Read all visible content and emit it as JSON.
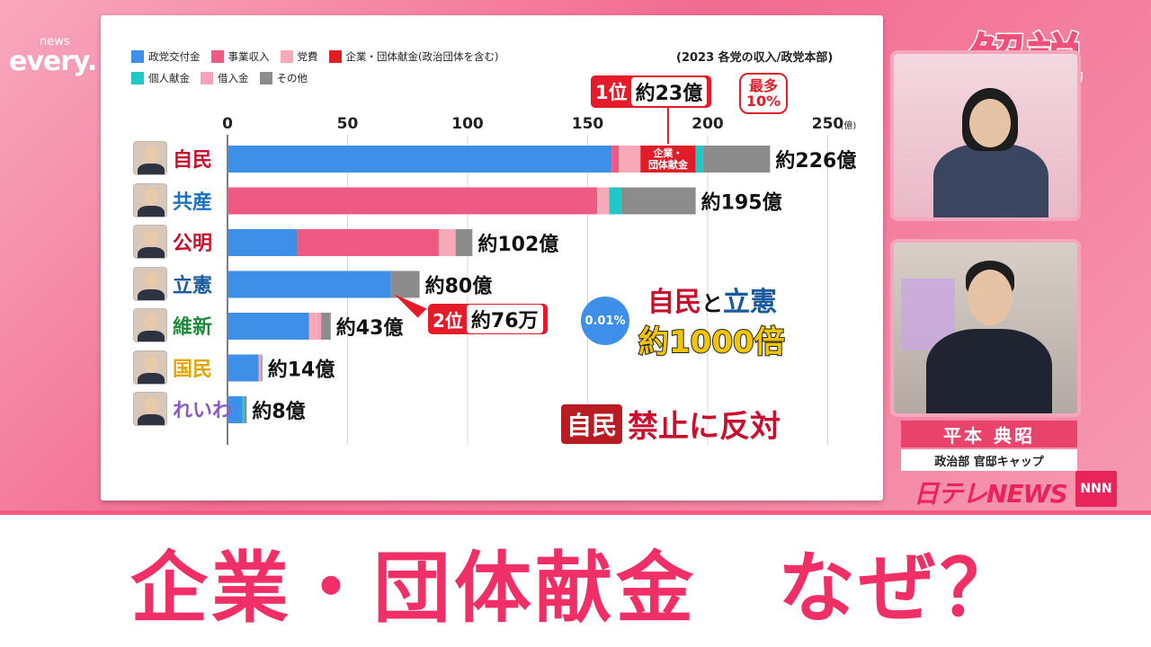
{
  "logo": {
    "small": "news",
    "big": "every."
  },
  "corner_label": "解説",
  "source_note": "(2023 各党の収入/政党本部)",
  "legend": [
    {
      "label": "政党交付金",
      "color": "#3d8fe8"
    },
    {
      "label": "事業収入",
      "color": "#ee5a84"
    },
    {
      "label": "党費",
      "color": "#f6a9b6"
    },
    {
      "label": "企業・団体献金(政治団体を含む)",
      "color": "#e01e2a"
    },
    {
      "label": "個人献金",
      "color": "#1fc7c7"
    },
    {
      "label": "借入金",
      "color": "#f8a1bd"
    },
    {
      "label": "その他",
      "color": "#8c8c8c"
    }
  ],
  "chart_data": {
    "type": "bar",
    "orientation": "horizontal",
    "stacked": true,
    "xlim": [
      0,
      250
    ],
    "x_ticks": [
      0,
      50,
      100,
      150,
      200,
      250
    ],
    "x_unit_label": "(億)",
    "grid": true,
    "categories": [
      "自民",
      "共産",
      "公明",
      "立憲",
      "維新",
      "国民",
      "れいわ"
    ],
    "category_colors": [
      "#c8102e",
      "#1a6fbf",
      "#c8102e",
      "#1a5a9c",
      "#1f8a3c",
      "#e0a500",
      "#8a5cc2"
    ],
    "series": [
      {
        "name": "政党交付金",
        "color": "#3d8fe8",
        "values": [
          160,
          0,
          29,
          68,
          34,
          13,
          6
        ]
      },
      {
        "name": "事業収入",
        "color": "#ee5a84",
        "values": [
          3,
          154,
          59,
          0,
          0,
          0,
          0
        ]
      },
      {
        "name": "党費",
        "color": "#f6a9b6",
        "values": [
          9,
          5,
          7,
          0,
          3,
          0.5,
          0
        ]
      },
      {
        "name": "企業・団体献金(政治団体を含む)",
        "color": "#e01e2a",
        "values": [
          23,
          0,
          0,
          0.0076,
          0,
          0,
          0
        ]
      },
      {
        "name": "個人献金",
        "color": "#1fc7c7",
        "values": [
          3,
          5,
          0,
          0,
          0,
          0,
          1
        ]
      },
      {
        "name": "借入金",
        "color": "#f8a1bd",
        "values": [
          0,
          0,
          0,
          0,
          2,
          0.5,
          0
        ]
      },
      {
        "name": "その他",
        "color": "#8c8c8c",
        "values": [
          28,
          31,
          7,
          12,
          4,
          0.5,
          1
        ]
      }
    ],
    "total_labels": [
      "約226億",
      "約195億",
      "約102億",
      "約80億",
      "約43億",
      "約14億",
      "約8億"
    ],
    "inbar_label": "企業・\n団体献金",
    "annotations": {
      "first": {
        "rank": "1位",
        "amount": "約23億",
        "share": "最多\n10%"
      },
      "second": {
        "rank": "2位",
        "amount": "約76万",
        "share": "0.01%"
      },
      "ratio_line1": [
        "自民",
        "と",
        "立憲"
      ],
      "ratio_line2": "約1000倍",
      "oppose_party": "自民",
      "oppose_text": "禁止に反対"
    }
  },
  "presenter": {
    "name": "平本 典昭",
    "role": "政治部 官邸キャップ"
  },
  "network": {
    "logo": "日テレNEWS",
    "badge": "NNN"
  },
  "headline": "企業・団体献金　なぜ？"
}
